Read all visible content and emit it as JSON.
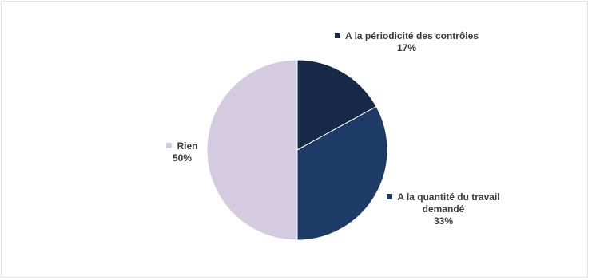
{
  "chart_data": {
    "type": "pie",
    "title": "",
    "slices": [
      {
        "label": "A la périodicité des contrôles",
        "value": 17,
        "display": "17%",
        "color": "#162a48"
      },
      {
        "label": "A la quantité du travail demandé",
        "value": 33,
        "display": "33%",
        "color": "#1e3a66"
      },
      {
        "label": "Rien",
        "value": 50,
        "display": "50%",
        "color": "#d5cbe0"
      }
    ],
    "legend": "none",
    "labels": "outside"
  }
}
